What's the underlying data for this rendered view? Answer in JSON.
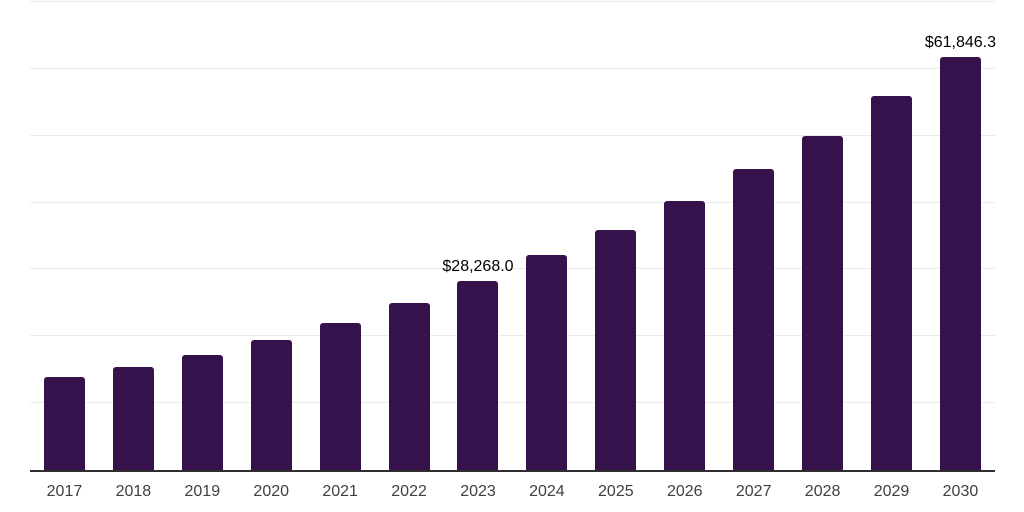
{
  "chart_data": {
    "type": "bar",
    "title": "",
    "xlabel": "",
    "ylabel": "",
    "categories": [
      "2017",
      "2018",
      "2019",
      "2020",
      "2021",
      "2022",
      "2023",
      "2024",
      "2025",
      "2026",
      "2027",
      "2028",
      "2029",
      "2030"
    ],
    "values": [
      13950,
      15450,
      17200,
      19450,
      22030,
      25020,
      28268.0,
      32100,
      35900,
      40230,
      44970,
      49950,
      55940,
      61846.3
    ],
    "value_labels": {
      "2023": "$28,268.0",
      "2030": "$61,846.3"
    },
    "ylim": [
      0,
      70000
    ],
    "gridline_interval": 10000,
    "grid": "horizontal",
    "legend": "none",
    "y_axis_tick_labels_visible": false
  },
  "style": {
    "bar_color": "#36124D",
    "gridline_color": "#ebebeb",
    "axis_color": "#2e2e2e",
    "tick_label_color": "#404040",
    "value_label_color": "#000000",
    "background_color": "#ffffff"
  }
}
